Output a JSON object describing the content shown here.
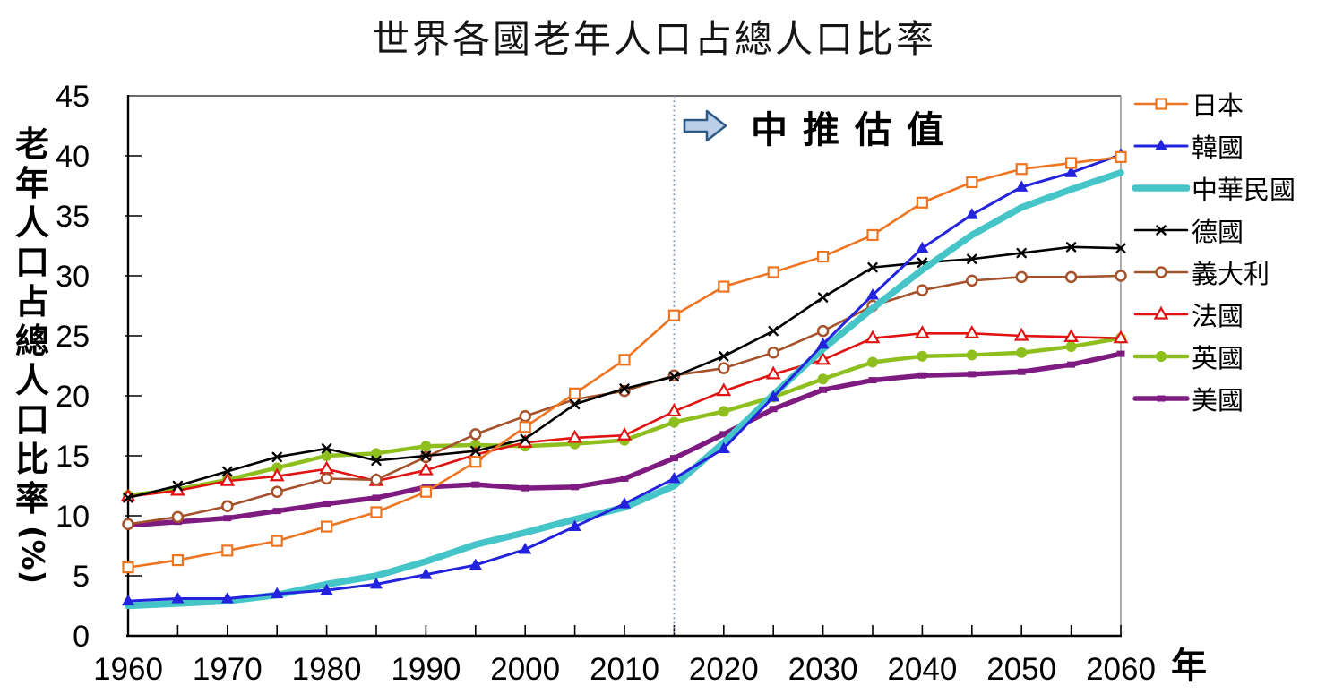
{
  "title": "世界各國老年人口占總人口比率",
  "chart_data": {
    "type": "line",
    "title": "世界各國老年人口占總人口比率",
    "xlabel": "年",
    "ylabel": "老年人口占總人口比率(%)",
    "ylabel_unit": "(%)",
    "ylim": [
      0,
      45
    ],
    "y_ticks": [
      0,
      5,
      10,
      15,
      20,
      25,
      30,
      35,
      40,
      45
    ],
    "x_range": [
      1960,
      2060
    ],
    "x_step": 5,
    "x": [
      1960,
      1965,
      1970,
      1975,
      1980,
      1985,
      1990,
      1995,
      2000,
      2005,
      2010,
      2015,
      2020,
      2025,
      2030,
      2035,
      2040,
      2045,
      2050,
      2055,
      2060
    ],
    "x_label_years": [
      1960,
      1970,
      1980,
      1990,
      2000,
      2010,
      2020,
      2030,
      2040,
      2050,
      2060
    ],
    "grid": false,
    "legend_position": "right",
    "reference_line": {
      "year": 2015,
      "style": "dotted",
      "color": "#7593B5"
    },
    "annotation": {
      "text": "中推估值",
      "icon": "right-block-arrow",
      "arrow_fill": "#BBCFE8",
      "arrow_stroke": "#2E5A85"
    },
    "series": [
      {
        "name": "日本",
        "color": "#ED7420",
        "marker": "open-square",
        "line_width": 2.6,
        "values": [
          5.7,
          6.3,
          7.1,
          7.9,
          9.1,
          10.3,
          12.0,
          14.5,
          17.4,
          20.2,
          23.0,
          26.7,
          29.1,
          30.3,
          31.6,
          33.4,
          36.1,
          37.8,
          38.9,
          39.4,
          39.9
        ]
      },
      {
        "name": "韓國",
        "color": "#2323DD",
        "marker": "filled-triangle",
        "line_width": 3.0,
        "values": [
          2.9,
          3.1,
          3.1,
          3.5,
          3.8,
          4.3,
          5.1,
          5.9,
          7.2,
          9.1,
          11.0,
          13.1,
          15.6,
          19.9,
          24.3,
          28.4,
          32.3,
          35.1,
          37.4,
          38.6,
          40.1
        ]
      },
      {
        "name": "中華民國",
        "color": "#46C5C8",
        "marker": "none",
        "line_width": 7.5,
        "values": [
          2.5,
          2.7,
          2.9,
          3.4,
          4.3,
          5.0,
          6.2,
          7.6,
          8.6,
          9.7,
          10.7,
          12.5,
          16.1,
          20.1,
          23.9,
          27.3,
          30.5,
          33.4,
          35.7,
          37.2,
          38.6
        ]
      },
      {
        "name": "德國",
        "color": "#000000",
        "marker": "x-cross",
        "line_width": 2.6,
        "values": [
          11.5,
          12.5,
          13.7,
          14.9,
          15.6,
          14.6,
          15.0,
          15.4,
          16.4,
          19.3,
          20.6,
          21.6,
          23.3,
          25.4,
          28.2,
          30.7,
          31.1,
          31.4,
          31.9,
          32.4,
          32.3
        ]
      },
      {
        "name": "義大利",
        "color": "#A5512B",
        "marker": "open-circle",
        "line_width": 2.6,
        "values": [
          9.3,
          9.9,
          10.8,
          12.0,
          13.1,
          13.0,
          14.9,
          16.8,
          18.3,
          19.7,
          20.4,
          21.7,
          22.3,
          23.6,
          25.4,
          27.5,
          28.8,
          29.6,
          29.9,
          29.9,
          30.0
        ]
      },
      {
        "name": "法國",
        "color": "#E01212",
        "marker": "open-triangle",
        "line_width": 2.6,
        "values": [
          11.6,
          12.1,
          12.9,
          13.3,
          13.9,
          12.9,
          13.8,
          15.1,
          16.1,
          16.5,
          16.7,
          18.7,
          20.4,
          21.8,
          23.0,
          24.8,
          25.2,
          25.2,
          25.0,
          24.9,
          24.8
        ]
      },
      {
        "name": "英國",
        "color": "#8FBF1F",
        "marker": "filled-circle",
        "line_width": 4.5,
        "values": [
          11.7,
          12.2,
          13.0,
          14.0,
          15.0,
          15.2,
          15.8,
          15.9,
          15.8,
          16.0,
          16.3,
          17.8,
          18.7,
          19.9,
          21.4,
          22.8,
          23.3,
          23.4,
          23.6,
          24.1,
          24.8
        ]
      },
      {
        "name": "美國",
        "color": "#7D1B80",
        "marker": "filled-square",
        "line_width": 5.5,
        "values": [
          9.2,
          9.5,
          9.8,
          10.4,
          11.0,
          11.5,
          12.4,
          12.6,
          12.3,
          12.4,
          13.1,
          14.8,
          16.8,
          18.9,
          20.5,
          21.3,
          21.7,
          21.8,
          22.0,
          22.6,
          23.5
        ]
      }
    ],
    "draw_order": [
      7,
      6,
      5,
      4,
      3,
      2,
      1,
      0
    ]
  }
}
